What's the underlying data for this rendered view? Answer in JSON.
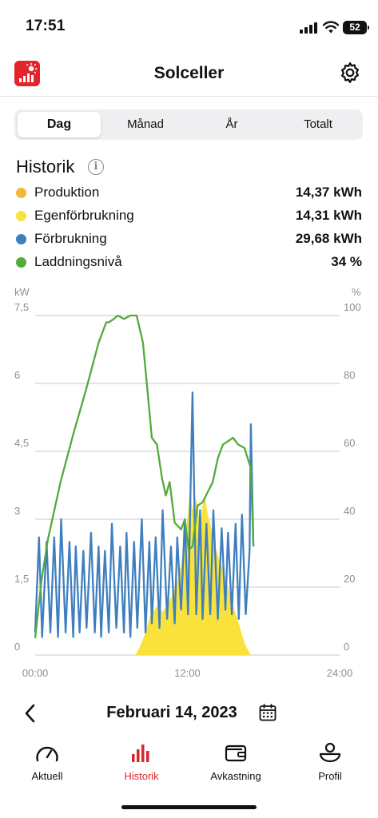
{
  "status_bar": {
    "time": "17:51",
    "battery": "52"
  },
  "header": {
    "title": "Solceller"
  },
  "segments": [
    {
      "label": "Dag",
      "active": true
    },
    {
      "label": "Månad",
      "active": false
    },
    {
      "label": "År",
      "active": false
    },
    {
      "label": "Totalt",
      "active": false
    }
  ],
  "history": {
    "title": "Historik",
    "legend": [
      {
        "label": "Produktion",
        "value": "14,37 kWh",
        "color": "#f3b73a"
      },
      {
        "label": "Egenförbrukning",
        "value": "14,31 kWh",
        "color": "#f8e23b"
      },
      {
        "label": "Förbrukning",
        "value": "29,68 kWh",
        "color": "#3f7fbf"
      },
      {
        "label": "Laddningsnivå",
        "value": "34 %",
        "color": "#52ab3b"
      }
    ]
  },
  "chart_data": {
    "type": "line",
    "left_unit": "kW",
    "right_unit": "%",
    "left_ticks": [
      "7,5",
      "6",
      "4,5",
      "3",
      "1,5",
      "0"
    ],
    "right_ticks": [
      "100",
      "80",
      "60",
      "40",
      "20",
      "0"
    ],
    "x_ticks": [
      "00:00",
      "12:00",
      "24:00"
    ],
    "xlim_hours": [
      0,
      24
    ],
    "ylim_kw": [
      0,
      7.5
    ],
    "ylim_pct": [
      0,
      100
    ],
    "grid": true,
    "series": [
      {
        "name": "Egenförbrukning",
        "kind": "area",
        "axis": "left",
        "color": "#f8e23b",
        "x": [
          0,
          7.9,
          8.2,
          8.5,
          8.8,
          9.1,
          9.4,
          9.7,
          10.0,
          10.3,
          10.6,
          10.9,
          11.2,
          11.5,
          11.7,
          12.0,
          12.2,
          12.4,
          12.6,
          12.8,
          13.0,
          13.2,
          13.4,
          13.6,
          13.8,
          14.0,
          14.2,
          14.5,
          14.8,
          15.1,
          15.4,
          15.7,
          16.0,
          16.3,
          16.6,
          17.0,
          24
        ],
        "values": [
          0,
          0,
          0.15,
          0.35,
          0.6,
          0.9,
          1.0,
          1.1,
          0.95,
          1.05,
          1.2,
          1.4,
          1.6,
          2.0,
          2.4,
          3.0,
          3.6,
          3.2,
          3.5,
          3.3,
          2.7,
          3.3,
          3.5,
          3.1,
          2.9,
          2.6,
          2.4,
          2.1,
          1.9,
          1.6,
          1.3,
          1.0,
          0.75,
          0.45,
          0.2,
          0,
          0
        ]
      },
      {
        "name": "Förbrukning",
        "kind": "line",
        "axis": "left",
        "color": "#3f7fbf",
        "x": [
          0,
          0.3,
          0.55,
          0.9,
          1.2,
          1.5,
          1.8,
          2.05,
          2.4,
          2.7,
          3.0,
          3.2,
          3.5,
          3.8,
          4.05,
          4.4,
          4.7,
          5.0,
          5.2,
          5.5,
          5.8,
          6.05,
          6.4,
          6.7,
          7.0,
          7.2,
          7.5,
          7.8,
          8.05,
          8.4,
          8.7,
          9.0,
          9.2,
          9.5,
          9.8,
          10.05,
          10.4,
          10.7,
          11.0,
          11.2,
          11.5,
          11.8,
          12.05,
          12.4,
          12.7,
          13.0,
          13.2,
          13.5,
          13.8,
          14.05,
          14.4,
          14.7,
          15.0,
          15.2,
          15.5,
          15.8,
          16.05,
          16.3,
          16.6,
          16.9,
          17.0,
          17.2
        ],
        "values": [
          0.5,
          2.6,
          0.4,
          2.5,
          0.5,
          2.6,
          0.4,
          3.0,
          0.5,
          2.5,
          0.4,
          2.4,
          0.5,
          2.3,
          0.6,
          2.7,
          0.5,
          2.4,
          0.4,
          2.3,
          0.5,
          2.9,
          0.6,
          2.4,
          0.5,
          2.7,
          0.4,
          2.5,
          0.6,
          3.0,
          0.5,
          2.5,
          0.7,
          2.6,
          0.6,
          3.2,
          0.8,
          2.4,
          0.7,
          2.6,
          1.0,
          3.0,
          0.9,
          5.8,
          0.9,
          3.2,
          0.8,
          2.9,
          0.9,
          3.2,
          0.8,
          2.8,
          1.0,
          2.7,
          0.9,
          2.9,
          0.8,
          3.1,
          0.9,
          2.3,
          5.1,
          2.4
        ]
      },
      {
        "name": "Laddningsnivå",
        "kind": "line",
        "axis": "right",
        "color": "#52ab3b",
        "x": [
          0,
          0.5,
          1.0,
          2.0,
          3.0,
          4.0,
          5.0,
          5.6,
          5.8,
          6.2,
          6.5,
          7.0,
          7.5,
          8.0,
          8.5,
          8.8,
          9.2,
          9.6,
          10.0,
          10.3,
          10.6,
          11.0,
          11.5,
          11.8,
          12.1,
          12.4,
          12.8,
          13.2,
          13.6,
          14.0,
          14.4,
          14.8,
          15.2,
          15.6,
          16.0,
          16.5,
          17.0,
          17.2
        ],
        "values": [
          5,
          22,
          34,
          51,
          65,
          78,
          92,
          98,
          98,
          99,
          100,
          99,
          100,
          100,
          92,
          80,
          64,
          62,
          52,
          47,
          51,
          39,
          37,
          40,
          31,
          32,
          44,
          45,
          48,
          51,
          58,
          62,
          63,
          64,
          62,
          61,
          55,
          32
        ]
      }
    ]
  },
  "date_nav": {
    "date": "Februari 14, 2023"
  },
  "tabs": [
    {
      "label": "Aktuell",
      "active": false
    },
    {
      "label": "Historik",
      "active": true
    },
    {
      "label": "Avkastning",
      "active": false
    },
    {
      "label": "Profil",
      "active": false
    }
  ],
  "colors": {
    "accent": "#d9262b",
    "brand_icon": "#e3242b"
  },
  "icons": [
    "solar-app-icon",
    "gear-icon",
    "info-icon",
    "chevron-left-icon",
    "calendar-icon",
    "gauge-icon",
    "bar-chart-icon",
    "wallet-icon",
    "person-icon"
  ]
}
